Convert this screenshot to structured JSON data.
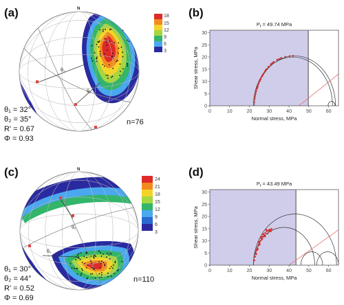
{
  "panels": {
    "a": {
      "letter": "(a)",
      "north": "N",
      "n_label": "n=76",
      "params": [
        "θ₁ = 32°",
        "θ₂ = 35°",
        "R' = 0.67",
        "Φ = 0.93"
      ],
      "legend_ticks": [
        "18",
        "15",
        "12",
        "9",
        "6",
        "3"
      ],
      "theta1": "θ₁",
      "theta2": "θ₂"
    },
    "b": {
      "letter": "(b)"
    },
    "c": {
      "letter": "(c)",
      "north": "N",
      "n_label": "n=110",
      "params": [
        "θ₁ = 30°",
        "θ₂ = 44°",
        "R' = 0.52",
        "Φ = 0.69"
      ],
      "legend_ticks": [
        "24",
        "21",
        "18",
        "15",
        "12",
        "9",
        "6",
        "3"
      ],
      "theta1": "θ₁",
      "theta2": "θ₂"
    },
    "d": {
      "letter": "(d)"
    }
  },
  "colors": {
    "shade": "#cfcde9",
    "envelope_red": "#d62a2a",
    "circle": "#333333",
    "friction_line": "#e36a6a"
  },
  "chart_data": [
    {
      "type": "scatter",
      "panel": "b",
      "title": "P_f = 49.74 MPa",
      "title_parts": {
        "main": "P",
        "sub": "f",
        "rest": " = 49.74 MPa"
      },
      "xlabel": "Normal stress, MPa",
      "ylabel": "Shear stress, MPa",
      "xlim": [
        0,
        65
      ],
      "ylim": [
        0,
        31
      ],
      "xticks": [
        0,
        10,
        20,
        30,
        40,
        50,
        60
      ],
      "yticks": [
        0,
        5,
        10,
        15,
        20,
        25,
        30
      ],
      "shaded_region_x": [
        0,
        49.74
      ],
      "circles": [
        {
          "center": 43.0,
          "radius": 20.5
        },
        {
          "center": 42.0,
          "radius": 20.0
        },
        {
          "center": 61.5,
          "radius": 1.8
        }
      ],
      "friction_line": {
        "x": [
          45,
          65
        ],
        "y": [
          0,
          13
        ]
      },
      "points": [
        [
          22.3,
          1.5
        ],
        [
          22.6,
          3
        ],
        [
          22.8,
          4
        ],
        [
          23.1,
          5
        ],
        [
          23.4,
          6
        ],
        [
          23.8,
          7
        ],
        [
          24.2,
          8
        ],
        [
          24.6,
          9
        ],
        [
          25.1,
          10
        ],
        [
          25.7,
          11
        ],
        [
          26.3,
          12
        ],
        [
          27,
          13
        ],
        [
          27.8,
          14
        ],
        [
          28.6,
          15
        ],
        [
          29.6,
          16
        ],
        [
          30.8,
          17
        ],
        [
          32.2,
          18
        ],
        [
          34,
          18.9
        ],
        [
          36,
          19.6
        ],
        [
          38.2,
          20.1
        ],
        [
          40.3,
          20.4
        ],
        [
          42,
          20.5
        ],
        [
          24,
          7.6
        ],
        [
          25.3,
          10.5
        ],
        [
          26.6,
          12.5
        ],
        [
          28.2,
          14.6
        ],
        [
          31.5,
          17.5
        ],
        [
          35,
          19.2
        ]
      ]
    },
    {
      "type": "scatter",
      "panel": "d",
      "title": "P_f = 43.49 MPa",
      "title_parts": {
        "main": "P",
        "sub": "f",
        "rest": " = 43.49 MPa"
      },
      "xlabel": "Normal stress, MPa",
      "ylabel": "Shear stress, MPa",
      "xlim": [
        0,
        65
      ],
      "ylim": [
        0,
        31
      ],
      "xticks": [
        0,
        10,
        20,
        30,
        40,
        50,
        60
      ],
      "yticks": [
        0,
        5,
        10,
        15,
        20,
        25,
        30
      ],
      "shaded_region_x": [
        0,
        43.49
      ],
      "circles": [
        {
          "center": 43.0,
          "radius": 21.0
        },
        {
          "center": 37.5,
          "radius": 15.5
        },
        {
          "center": 51.5,
          "radius": 5.5
        },
        {
          "center": 59.5,
          "radius": 5.5
        }
      ],
      "friction_line": {
        "x": [
          40,
          65
        ],
        "y": [
          0,
          14.5
        ]
      },
      "points": [
        [
          22.5,
          2
        ],
        [
          22.8,
          3.5
        ],
        [
          23.2,
          5
        ],
        [
          23.6,
          6
        ],
        [
          24,
          7
        ],
        [
          24.5,
          8
        ],
        [
          25,
          9
        ],
        [
          25.5,
          10
        ],
        [
          26,
          11
        ],
        [
          26.6,
          11.8
        ],
        [
          27.2,
          12.6
        ],
        [
          28,
          13.2
        ],
        [
          28.8,
          13.9
        ],
        [
          29.6,
          14.3
        ],
        [
          30.4,
          14.6
        ],
        [
          31.2,
          14.8
        ],
        [
          24.8,
          9.5
        ],
        [
          25.8,
          11.5
        ],
        [
          26.8,
          12.8
        ],
        [
          27.6,
          12.2
        ],
        [
          28.5,
          14.5
        ],
        [
          29.2,
          13
        ],
        [
          30,
          14
        ],
        [
          25.2,
          8.5
        ],
        [
          24.2,
          6.5
        ],
        [
          23.4,
          4.5
        ],
        [
          26.4,
          10.6
        ],
        [
          27.9,
          11.8
        ],
        [
          30.8,
          13.9
        ]
      ]
    }
  ]
}
